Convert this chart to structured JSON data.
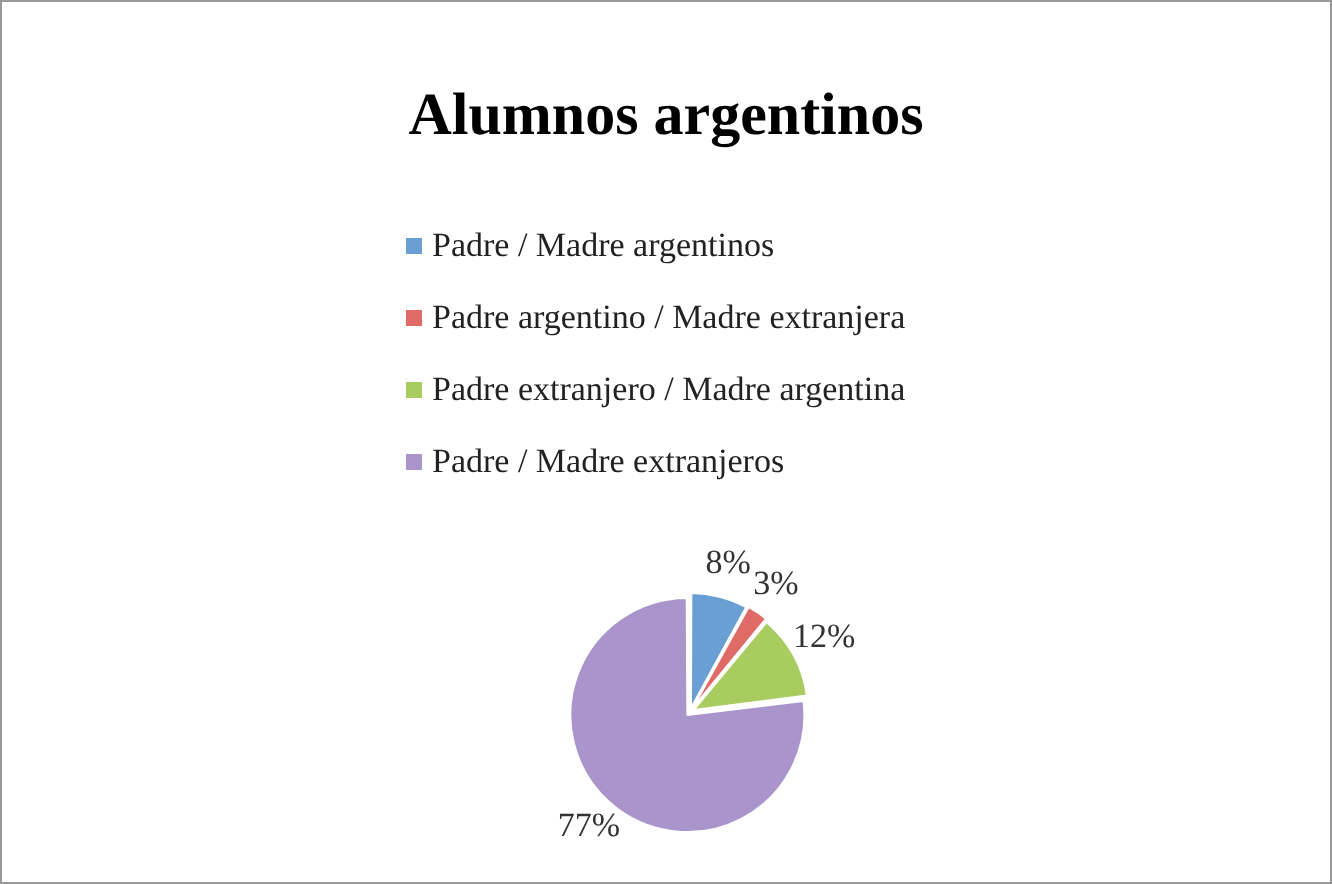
{
  "chart_data": {
    "type": "pie",
    "title": "Alumnos argentinos",
    "categories": [
      "Padre / Madre argentinos",
      "Padre argentino / Madre extranjera",
      "Padre extranjero / Madre argentina",
      "Padre / Madre extranjeros"
    ],
    "values": [
      8,
      3,
      12,
      77
    ],
    "colors": [
      "#6a9fd4",
      "#e06a66",
      "#a8cc60",
      "#a994cc"
    ],
    "value_labels": [
      "8%",
      "3%",
      "12%",
      "77%"
    ],
    "legend": "top"
  }
}
